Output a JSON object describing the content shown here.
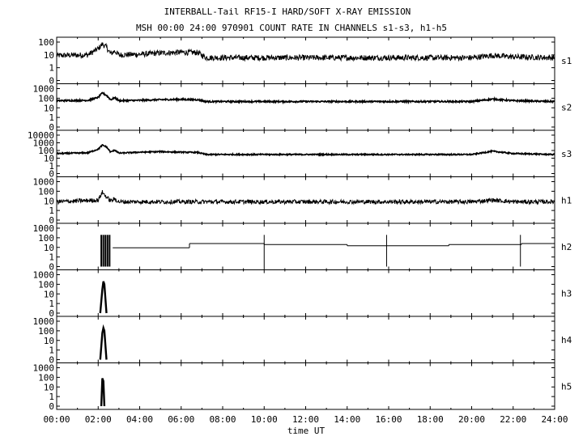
{
  "chart_data": {
    "type": "line",
    "title": "INTERBALL-Tail RF15-I HARD/SOFT X-RAY EMISSION",
    "subtitle": "MSH 00:00 24:00 970901  COUNT RATE IN CHANNELS s1-s3, h1-h5",
    "xlabel": "time UT",
    "x_ticks": [
      "00:00",
      "02:00",
      "04:00",
      "06:00",
      "08:00",
      "10:00",
      "12:00",
      "14:00",
      "16:00",
      "18:00",
      "20:00",
      "22:00",
      "24:00"
    ],
    "xlim": [
      0,
      24
    ],
    "grid": false,
    "panels": [
      {
        "name": "s1",
        "yscale": "log",
        "y_ticks": [
          "100",
          "10",
          "1",
          "0"
        ],
        "x": [
          0,
          1.5,
          2.0,
          2.2,
          2.4,
          2.6,
          2.8,
          3.0,
          4.0,
          5.0,
          6.0,
          6.8,
          7.2,
          8.0,
          10.0,
          12.0,
          14.0,
          16.0,
          18.0,
          20.0,
          21.0,
          22.0,
          24.0
        ],
        "values": [
          9,
          10,
          30,
          70,
          40,
          12,
          20,
          10,
          11,
          14,
          16,
          15,
          6,
          6,
          6,
          6,
          6,
          6,
          6,
          6,
          9,
          7,
          6
        ]
      },
      {
        "name": "s2",
        "yscale": "log",
        "y_ticks": [
          "1000",
          "100",
          "10",
          "1",
          "0"
        ],
        "x": [
          0,
          1.5,
          2.0,
          2.2,
          2.4,
          2.6,
          2.8,
          3.0,
          4.0,
          5.0,
          6.0,
          6.8,
          7.2,
          8.0,
          10.0,
          12.0,
          14.0,
          16.0,
          18.0,
          20.0,
          21.0,
          22.0,
          24.0
        ],
        "values": [
          55,
          60,
          120,
          350,
          200,
          70,
          110,
          55,
          60,
          70,
          75,
          70,
          45,
          45,
          45,
          45,
          45,
          45,
          45,
          45,
          80,
          55,
          45
        ]
      },
      {
        "name": "s3",
        "yscale": "log",
        "y_ticks": [
          "10000",
          "1000",
          "100",
          "10",
          "1",
          "0"
        ],
        "x": [
          0,
          1.5,
          2.0,
          2.2,
          2.4,
          2.6,
          2.8,
          3.0,
          4.0,
          5.0,
          6.0,
          6.8,
          7.2,
          8.0,
          10.0,
          12.0,
          14.0,
          16.0,
          18.0,
          20.0,
          21.0,
          22.0,
          24.0
        ],
        "values": [
          40,
          50,
          150,
          500,
          300,
          60,
          120,
          45,
          60,
          70,
          60,
          55,
          30,
          30,
          30,
          30,
          30,
          30,
          30,
          30,
          80,
          40,
          30
        ]
      },
      {
        "name": "h1",
        "yscale": "log",
        "y_ticks": [
          "1000",
          "100",
          "10",
          "1",
          "0"
        ],
        "x": [
          0,
          2.0,
          2.2,
          2.4,
          2.6,
          2.8,
          3.0,
          8.0,
          10.0,
          12.0,
          14.0,
          16.0,
          18.0,
          20.0,
          21.0,
          22.0,
          24.0
        ],
        "values": [
          8,
          12,
          80,
          25,
          10,
          15,
          8,
          8,
          8,
          8,
          8,
          8,
          8,
          8,
          12,
          8,
          8
        ]
      },
      {
        "name": "h2",
        "yscale": "log",
        "y_ticks": [
          "1000",
          "100",
          "10",
          "1",
          "0"
        ],
        "x": [
          0,
          2.7,
          6.4,
          10.0,
          14.0,
          18.9,
          22.4,
          24.0
        ],
        "values": [
          null,
          9,
          25,
          20,
          15,
          20,
          25,
          null
        ]
      },
      {
        "name": "h3",
        "yscale": "log",
        "y_ticks": [
          "1000",
          "100",
          "10",
          "1",
          "0"
        ],
        "x": [
          2.1,
          2.2,
          2.25,
          2.3,
          2.4
        ],
        "values": [
          0,
          30,
          200,
          100,
          0
        ]
      },
      {
        "name": "h4",
        "yscale": "log",
        "y_ticks": [
          "1000",
          "100",
          "10",
          "1",
          "0"
        ],
        "x": [
          2.1,
          2.2,
          2.25,
          2.3,
          2.4
        ],
        "values": [
          0,
          60,
          200,
          100,
          0
        ]
      },
      {
        "name": "h5",
        "yscale": "log",
        "y_ticks": [
          "1000",
          "100",
          "10",
          "1",
          "0"
        ],
        "x": [
          2.15,
          2.2,
          2.25,
          2.3
        ],
        "values": [
          0,
          80,
          40,
          0
        ]
      }
    ]
  }
}
